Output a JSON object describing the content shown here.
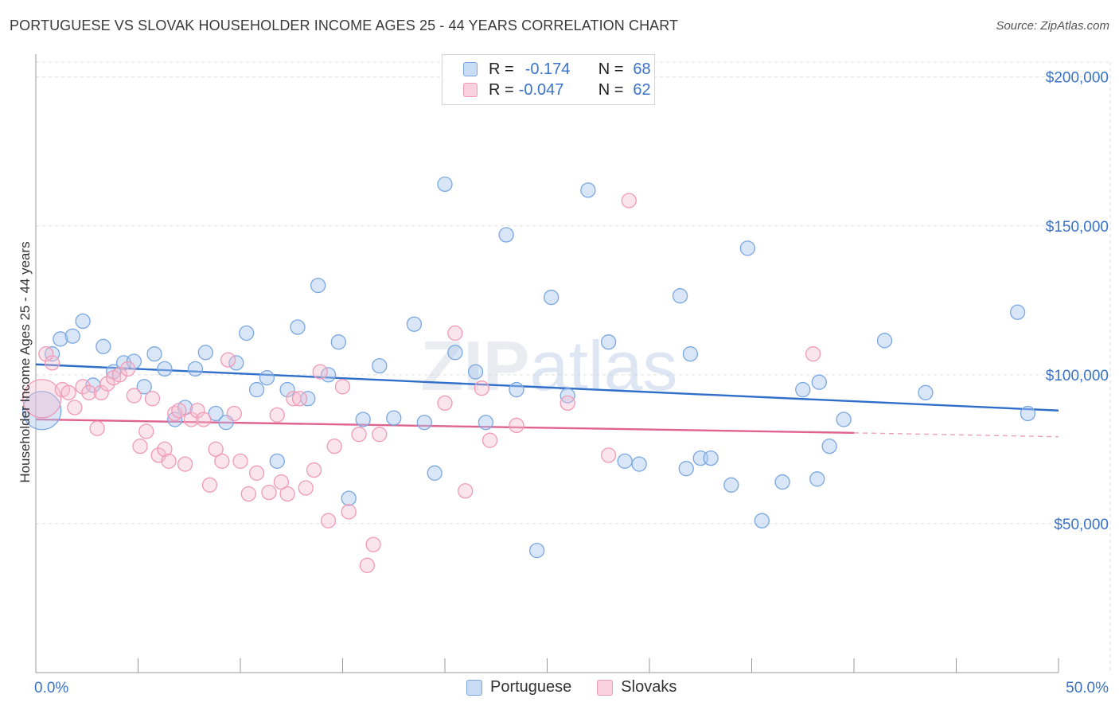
{
  "header": {
    "title": "PORTUGUESE VS SLOVAK HOUSEHOLDER INCOME AGES 25 - 44 YEARS CORRELATION CHART",
    "source": "Source: ZipAtlas.com"
  },
  "watermark": "ZIPatlas",
  "legend": {
    "rows": [
      {
        "r_label": "R =",
        "r_value": "-0.174",
        "n_label": "N =",
        "n_value": "68",
        "color": "#7aa7e0"
      },
      {
        "r_label": "R =",
        "r_value": "-0.047",
        "n_label": "N =",
        "n_value": "62",
        "color": "#f09ab6"
      }
    ]
  },
  "bottom_legend": {
    "items": [
      {
        "label": "Portuguese",
        "color": "#7aa7e0"
      },
      {
        "label": "Slovaks",
        "color": "#f09ab6"
      }
    ]
  },
  "chart_data": {
    "type": "scatter",
    "title": "PORTUGUESE VS SLOVAK HOUSEHOLDER INCOME AGES 25 - 44 YEARS CORRELATION CHART",
    "xlabel": "",
    "ylabel": "Householder Income Ages 25 - 44 years",
    "xlim": [
      0,
      50
    ],
    "ylim": [
      0,
      205000
    ],
    "x_tick_labels": [
      "0.0%",
      "50.0%"
    ],
    "y_ticks": [
      50000,
      100000,
      150000,
      200000
    ],
    "y_tick_labels": [
      "$50,000",
      "$100,000",
      "$150,000",
      "$200,000"
    ],
    "grid": true,
    "legend_position": "top-center",
    "series": [
      {
        "name": "Portuguese",
        "color": "#7aa7e0",
        "line_color": "#2f6fca",
        "trend": {
          "x0": 0,
          "y0": 103500,
          "x1": 50,
          "y1": 88000
        },
        "points": [
          [
            0.3,
            88000
          ],
          [
            0.8,
            107000
          ],
          [
            1.2,
            112000
          ],
          [
            1.8,
            113000
          ],
          [
            2.3,
            118000
          ],
          [
            2.8,
            96500
          ],
          [
            3.3,
            109500
          ],
          [
            3.8,
            101000
          ],
          [
            4.3,
            104000
          ],
          [
            4.8,
            104500
          ],
          [
            5.3,
            96000
          ],
          [
            5.8,
            107000
          ],
          [
            6.3,
            102000
          ],
          [
            6.8,
            85000
          ],
          [
            7.3,
            89000
          ],
          [
            7.8,
            102000
          ],
          [
            8.3,
            107500
          ],
          [
            8.8,
            87000
          ],
          [
            9.3,
            84000
          ],
          [
            9.8,
            104000
          ],
          [
            10.3,
            114000
          ],
          [
            10.8,
            95000
          ],
          [
            11.3,
            99000
          ],
          [
            11.8,
            71000
          ],
          [
            12.3,
            95000
          ],
          [
            12.8,
            116000
          ],
          [
            13.3,
            92000
          ],
          [
            13.8,
            130000
          ],
          [
            14.3,
            100000
          ],
          [
            14.8,
            111000
          ],
          [
            15.3,
            58500
          ],
          [
            16.0,
            85000
          ],
          [
            16.8,
            103000
          ],
          [
            17.5,
            85500
          ],
          [
            18.5,
            117000
          ],
          [
            19.0,
            84000
          ],
          [
            19.5,
            67000
          ],
          [
            20.0,
            164000
          ],
          [
            20.5,
            107500
          ],
          [
            21.5,
            101000
          ],
          [
            22.0,
            84000
          ],
          [
            23.0,
            147000
          ],
          [
            23.5,
            95000
          ],
          [
            24.5,
            41000
          ],
          [
            25.2,
            126000
          ],
          [
            26.0,
            93000
          ],
          [
            27.0,
            162000
          ],
          [
            28.0,
            111000
          ],
          [
            28.8,
            71000
          ],
          [
            29.5,
            70000
          ],
          [
            31.5,
            126500
          ],
          [
            31.8,
            68500
          ],
          [
            32.0,
            107000
          ],
          [
            32.5,
            72000
          ],
          [
            33.0,
            72000
          ],
          [
            34.0,
            63000
          ],
          [
            34.8,
            142500
          ],
          [
            35.5,
            51000
          ],
          [
            36.5,
            64000
          ],
          [
            37.5,
            95000
          ],
          [
            38.2,
            65000
          ],
          [
            38.3,
            97500
          ],
          [
            38.8,
            76000
          ],
          [
            39.5,
            85000
          ],
          [
            41.5,
            111500
          ],
          [
            43.5,
            94000
          ],
          [
            48.0,
            121000
          ],
          [
            48.5,
            87000
          ]
        ]
      },
      {
        "name": "Slovaks",
        "color": "#f09ab6",
        "line_color": "#e0628f",
        "trend": {
          "x0": 0,
          "y0": 85000,
          "x1": 40,
          "y1": 80500
        },
        "trend_dashed": {
          "x0": 40,
          "y0": 80500,
          "x1": 50,
          "y1": 79200
        },
        "points": [
          [
            0.3,
            92000
          ],
          [
            0.5,
            107000
          ],
          [
            0.8,
            104000
          ],
          [
            1.3,
            95000
          ],
          [
            1.6,
            94000
          ],
          [
            1.9,
            89000
          ],
          [
            2.3,
            96000
          ],
          [
            2.6,
            94000
          ],
          [
            3.0,
            82000
          ],
          [
            3.2,
            94000
          ],
          [
            3.5,
            97000
          ],
          [
            3.8,
            99000
          ],
          [
            4.1,
            100000
          ],
          [
            4.5,
            102000
          ],
          [
            4.8,
            93000
          ],
          [
            5.1,
            76000
          ],
          [
            5.4,
            81000
          ],
          [
            5.7,
            92000
          ],
          [
            6.0,
            73000
          ],
          [
            6.3,
            75000
          ],
          [
            6.5,
            71000
          ],
          [
            6.8,
            87000
          ],
          [
            7.0,
            88000
          ],
          [
            7.3,
            70000
          ],
          [
            7.6,
            85000
          ],
          [
            7.9,
            88000
          ],
          [
            8.2,
            85000
          ],
          [
            8.5,
            63000
          ],
          [
            8.8,
            75000
          ],
          [
            9.1,
            71000
          ],
          [
            9.4,
            105000
          ],
          [
            9.7,
            87000
          ],
          [
            10.0,
            71000
          ],
          [
            10.4,
            60000
          ],
          [
            10.8,
            67000
          ],
          [
            11.4,
            60500
          ],
          [
            11.8,
            86500
          ],
          [
            12.0,
            64000
          ],
          [
            12.3,
            60000
          ],
          [
            12.6,
            92000
          ],
          [
            12.9,
            92000
          ],
          [
            13.2,
            62000
          ],
          [
            13.6,
            68000
          ],
          [
            13.9,
            101000
          ],
          [
            14.3,
            51000
          ],
          [
            14.6,
            76000
          ],
          [
            15.0,
            96000
          ],
          [
            15.3,
            54000
          ],
          [
            15.8,
            80000
          ],
          [
            16.2,
            36000
          ],
          [
            16.5,
            43000
          ],
          [
            16.8,
            80000
          ],
          [
            20.0,
            90500
          ],
          [
            20.5,
            114000
          ],
          [
            21.0,
            61000
          ],
          [
            21.8,
            95500
          ],
          [
            22.2,
            78000
          ],
          [
            23.5,
            83000
          ],
          [
            26.0,
            90500
          ],
          [
            28.0,
            73000
          ],
          [
            29.0,
            158500
          ],
          [
            38.0,
            107000
          ]
        ]
      }
    ]
  }
}
